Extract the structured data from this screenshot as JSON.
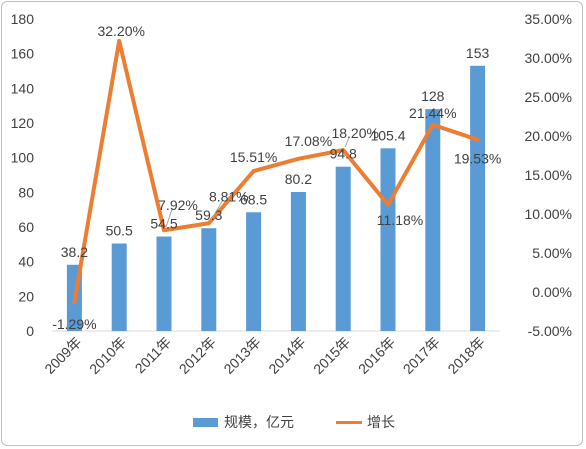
{
  "chart_data": {
    "type": "bar",
    "categories": [
      "2009年",
      "2010年",
      "2011年",
      "2012年",
      "2013年",
      "2014年",
      "2015年",
      "2016年",
      "2017年",
      "2018年"
    ],
    "series": [
      {
        "name": "规模，亿元",
        "type": "bar",
        "axis": "left",
        "color": "#5b9bd5",
        "values": [
          38.2,
          50.5,
          54.5,
          59.3,
          68.5,
          80.2,
          94.8,
          105.4,
          128,
          153
        ],
        "labels": [
          "38.2",
          "50.5",
          "54.5",
          "59.3",
          "68.5",
          "80.2",
          "94.8",
          "105.4",
          "128",
          "153"
        ]
      },
      {
        "name": "增长",
        "type": "line",
        "axis": "right",
        "color": "#ed7d31",
        "values": [
          -1.29,
          32.2,
          7.92,
          8.81,
          15.51,
          17.08,
          18.2,
          11.18,
          21.44,
          19.53
        ],
        "labels": [
          "-1.29%",
          "32.20%",
          "7.92%",
          "8.81%",
          "15.51%",
          "17.08%",
          "18.20%",
          "11.18%",
          "21.44%",
          "19.53%"
        ]
      }
    ],
    "left_axis": {
      "ylim": [
        0,
        180
      ],
      "ticks": [
        0,
        20,
        40,
        60,
        80,
        100,
        120,
        140,
        160,
        180
      ],
      "tick_labels": [
        "0",
        "20",
        "40",
        "60",
        "80",
        "100",
        "120",
        "140",
        "160",
        "180"
      ]
    },
    "right_axis": {
      "ylim": [
        -5,
        35
      ],
      "ticks": [
        -5,
        0,
        5,
        10,
        15,
        20,
        25,
        30,
        35
      ],
      "tick_labels": [
        "-5.00%",
        "0.00%",
        "5.00%",
        "10.00%",
        "15.00%",
        "20.00%",
        "25.00%",
        "30.00%",
        "35.00%"
      ]
    },
    "grid": false,
    "legend_position": "bottom"
  }
}
